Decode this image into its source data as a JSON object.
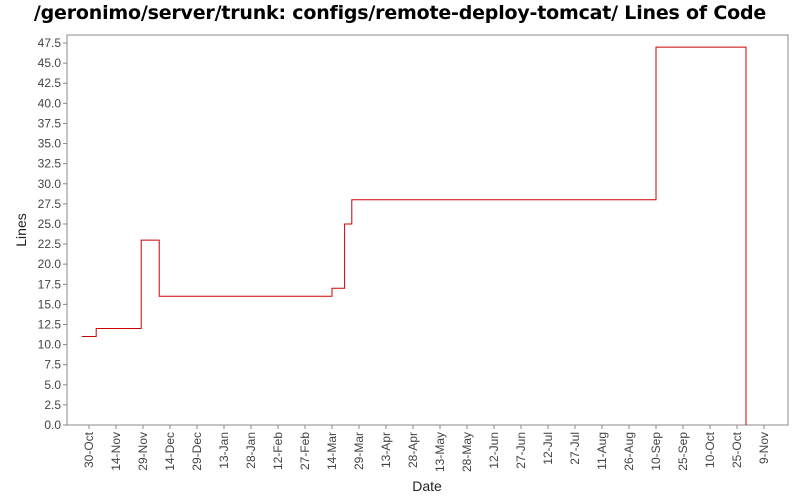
{
  "chart_data": {
    "type": "line",
    "title": "/geronimo/server/trunk: configs/remote-deploy-tomcat/ Lines of Code",
    "xlabel": "Date",
    "ylabel": "Lines",
    "ylim": [
      0,
      48.5
    ],
    "y_ticks": [
      "0.0",
      "2.5",
      "5.0",
      "7.5",
      "10.0",
      "12.5",
      "15.0",
      "17.5",
      "20.0",
      "22.5",
      "25.0",
      "27.5",
      "30.0",
      "32.5",
      "35.0",
      "37.5",
      "40.0",
      "42.5",
      "45.0",
      "47.5"
    ],
    "x_ticks": [
      "30-Oct",
      "14-Nov",
      "29-Nov",
      "14-Dec",
      "29-Dec",
      "13-Jan",
      "28-Jan",
      "12-Feb",
      "27-Feb",
      "14-Mar",
      "29-Mar",
      "13-Apr",
      "28-Apr",
      "13-May",
      "28-May",
      "12-Jun",
      "27-Jun",
      "12-Jul",
      "27-Jul",
      "11-Aug",
      "26-Aug",
      "10-Sep",
      "25-Sep",
      "10-Oct",
      "25-Oct",
      "9-Nov"
    ],
    "grid": false,
    "line_style": "step",
    "series": [
      {
        "color": "#cc0000",
        "points": [
          {
            "x": "26-Oct",
            "y": 11
          },
          {
            "x": "3-Nov",
            "y": 12
          },
          {
            "x": "28-Nov",
            "y": 23
          },
          {
            "x": "8-Dec",
            "y": 16
          },
          {
            "x": "14-Mar",
            "y": 17
          },
          {
            "x": "21-Mar",
            "y": 25
          },
          {
            "x": "25-Mar",
            "y": 28
          },
          {
            "x": "10-Sep",
            "y": 47
          },
          {
            "x": "30-Oct",
            "y": 0
          }
        ]
      }
    ]
  }
}
